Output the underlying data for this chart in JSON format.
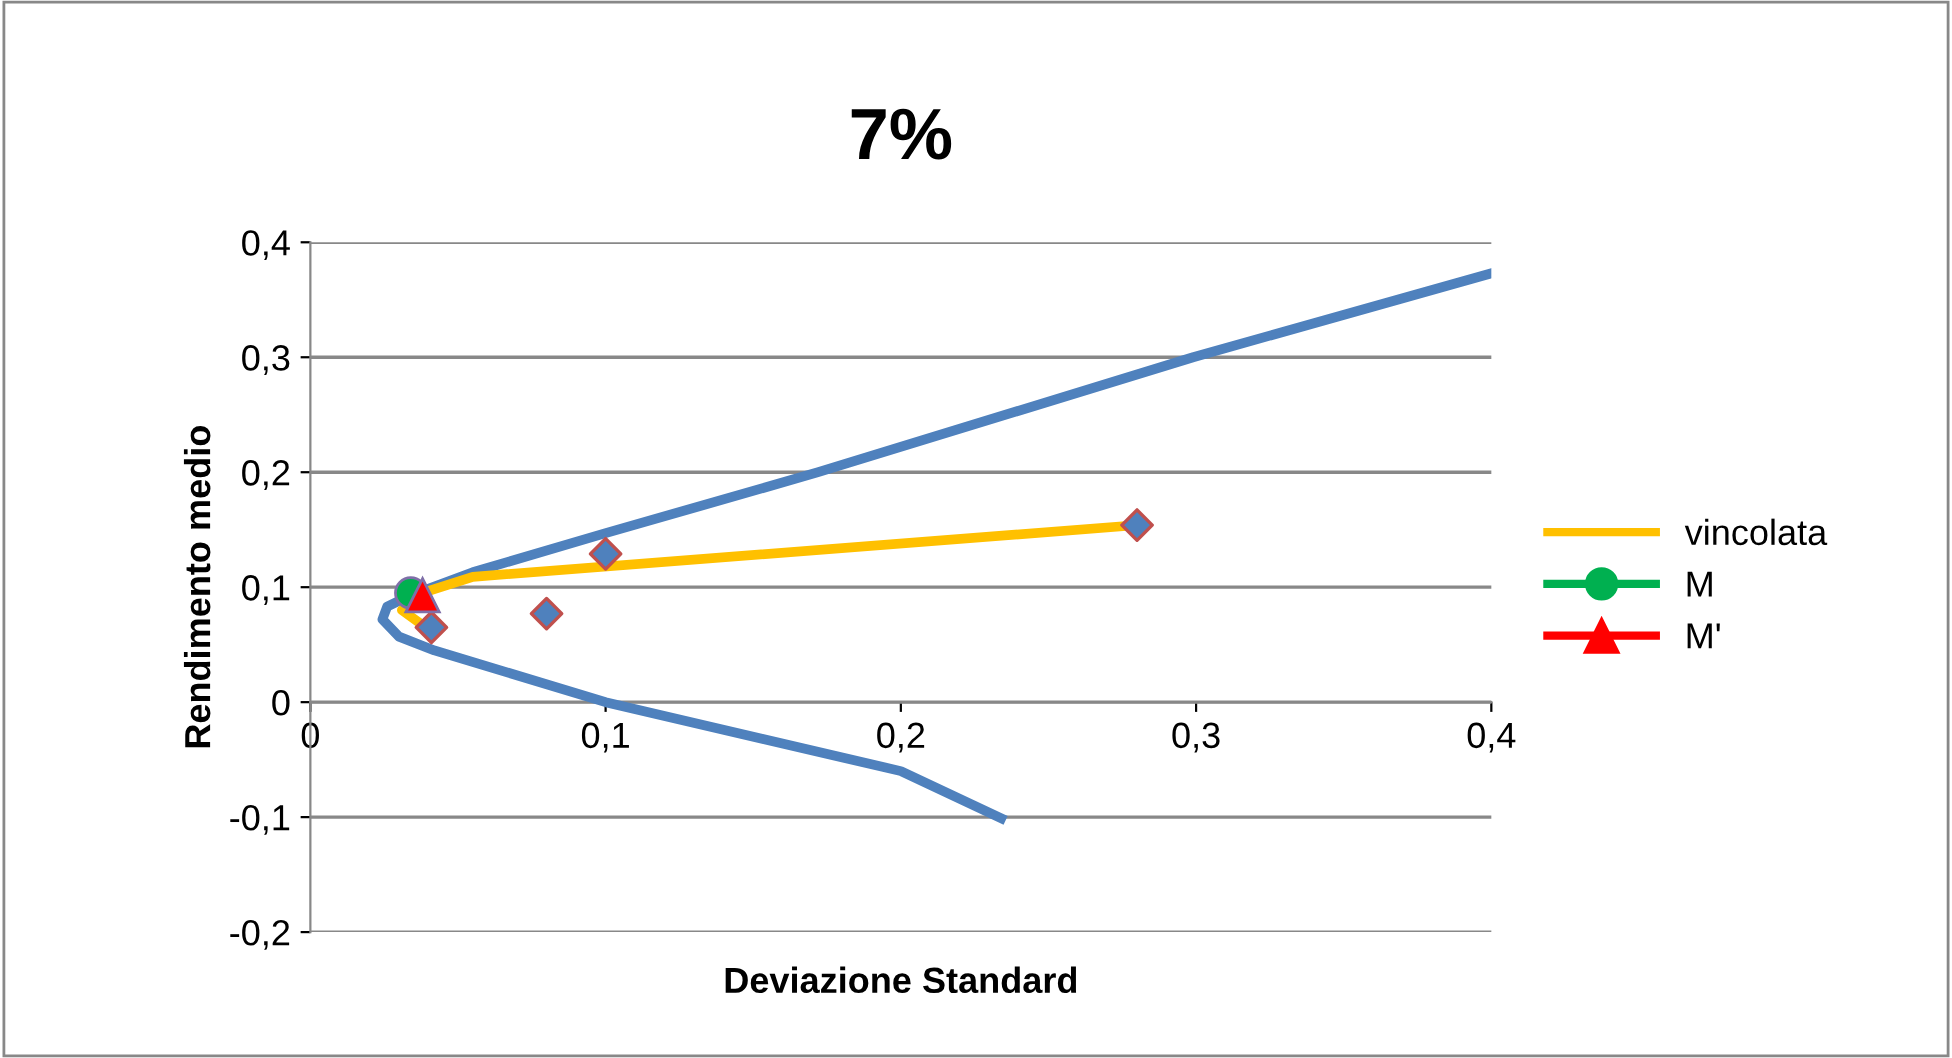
{
  "chart_data": {
    "type": "line",
    "title": "7%",
    "xlabel": "Deviazione Standard",
    "ylabel": "Rendimento medio",
    "xlim": [
      0,
      0.4
    ],
    "ylim": [
      -0.2,
      0.4
    ],
    "xticks": [
      {
        "value": 0,
        "label": "0"
      },
      {
        "value": 0.1,
        "label": "0,1"
      },
      {
        "value": 0.2,
        "label": "0,2"
      },
      {
        "value": 0.3,
        "label": "0,3"
      },
      {
        "value": 0.4,
        "label": "0,4"
      }
    ],
    "yticks": [
      {
        "value": -0.2,
        "label": "-0,2"
      },
      {
        "value": -0.1,
        "label": "-0,1"
      },
      {
        "value": 0,
        "label": "0"
      },
      {
        "value": 0.1,
        "label": "0,1"
      },
      {
        "value": 0.2,
        "label": "0,2"
      },
      {
        "value": 0.3,
        "label": "0,3"
      },
      {
        "value": 0.4,
        "label": "0,4"
      }
    ],
    "grid": "y",
    "legend": "right",
    "series": [
      {
        "color": "#4f81bd",
        "marker": "none",
        "x": [
          0.4,
          0.299,
          0.172,
          0.1,
          0.055,
          0.034,
          0.026,
          0.0244,
          0.03,
          0.042,
          0.1,
          0.2,
          0.234
        ],
        "values": [
          0.373,
          0.3,
          0.2,
          0.147,
          0.113,
          0.093,
          0.083,
          0.072,
          0.057,
          0.045,
          0.0,
          -0.06,
          -0.101
        ]
      },
      {
        "type": "scatter",
        "color": "#4f81bd",
        "marker": "diamond",
        "x": [
          0.041,
          0.08,
          0.1,
          0.28
        ],
        "values": [
          0.065,
          0.077,
          0.129,
          0.154
        ]
      },
      {
        "name": "vincolata",
        "color": "#ffc000",
        "marker": "none",
        "x": [
          0.038,
          0.031,
          0.038,
          0.055,
          0.28
        ],
        "values": [
          0.067,
          0.08,
          0.095,
          0.109,
          0.154
        ]
      },
      {
        "name": "M",
        "color": "#00b050",
        "marker": "circle",
        "x": [
          0.034
        ],
        "values": [
          0.095
        ]
      },
      {
        "name": "M'",
        "color": "#ff0000",
        "marker": "triangle",
        "x": [
          0.038
        ],
        "values": [
          0.093
        ]
      }
    ]
  }
}
